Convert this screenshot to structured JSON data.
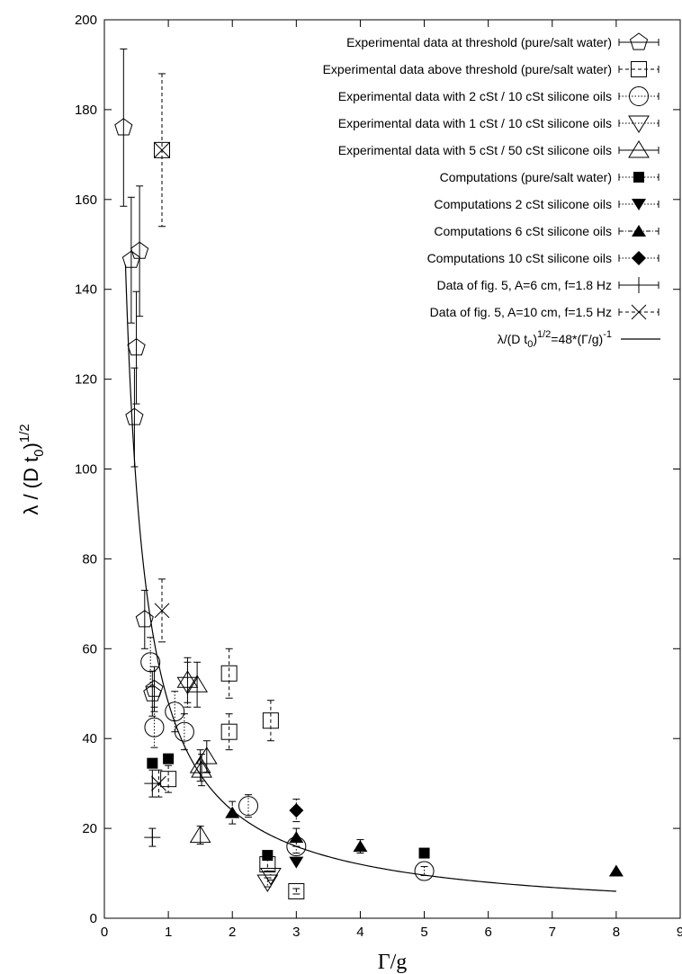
{
  "chart_data": {
    "type": "scatter",
    "xlabel": "Γ/g",
    "ylabel": {
      "main": "λ / (D t",
      "sub": "0",
      "close": ")",
      "sup": "1/2"
    },
    "xlim": [
      0,
      9
    ],
    "ylim": [
      0,
      200
    ],
    "x_ticks": [
      "0",
      "1",
      "2",
      "3",
      "4",
      "5",
      "6",
      "7",
      "8",
      "9"
    ],
    "y_ticks": [
      "0",
      "20",
      "40",
      "60",
      "80",
      "100",
      "120",
      "140",
      "160",
      "180",
      "200"
    ],
    "grid": false,
    "legend_position": "top-right",
    "series": [
      {
        "name": "Experimental data at threshold (pure/salt water)",
        "marker": "pentagon-open",
        "error_style": "solid",
        "points": [
          {
            "x": 0.3,
            "y": 176,
            "err": 17.5
          },
          {
            "x": 0.42,
            "y": 146.5,
            "err": 14
          },
          {
            "x": 0.55,
            "y": 148.5,
            "err": 14.5
          },
          {
            "x": 0.5,
            "y": 127,
            "err": 12.5
          },
          {
            "x": 0.47,
            "y": 111.5,
            "err": 11
          },
          {
            "x": 0.63,
            "y": 66.5,
            "err": 6.5
          },
          {
            "x": 0.78,
            "y": 51,
            "err": 5
          },
          {
            "x": 0.75,
            "y": 50,
            "err": 5
          }
        ]
      },
      {
        "name": "Experimental data above threshold (pure/salt water)",
        "marker": "square-open",
        "error_style": "dashed",
        "points": [
          {
            "x": 0.9,
            "y": 171,
            "err": 17
          },
          {
            "x": 1.0,
            "y": 31,
            "err": 3
          },
          {
            "x": 1.95,
            "y": 54.5,
            "err": 5.5
          },
          {
            "x": 1.95,
            "y": 41.5,
            "err": 4
          },
          {
            "x": 2.6,
            "y": 44,
            "err": 4.5
          },
          {
            "x": 2.55,
            "y": 12,
            "err": 1.5
          },
          {
            "x": 3.0,
            "y": 6,
            "err": 0.6
          }
        ]
      },
      {
        "name": "Experimental data with 2 cSt / 10 cSt silicone oils",
        "marker": "circle-open",
        "error_style": "dotted",
        "points": [
          {
            "x": 0.72,
            "y": 57,
            "err": 5.5
          },
          {
            "x": 0.78,
            "y": 42.5,
            "err": 4.5
          },
          {
            "x": 1.1,
            "y": 46,
            "err": 4.5
          },
          {
            "x": 1.25,
            "y": 41.5,
            "err": 4
          },
          {
            "x": 2.25,
            "y": 25,
            "err": 2.5
          },
          {
            "x": 3.0,
            "y": 16,
            "err": 1.5
          },
          {
            "x": 5.0,
            "y": 10.5,
            "err": 1
          }
        ]
      },
      {
        "name": "Experimental data with 1 cSt / 10 cSt silicone oils",
        "marker": "triangle-down-open",
        "error_style": "dotted",
        "points": [
          {
            "x": 2.55,
            "y": 8,
            "err": 1
          },
          {
            "x": 2.6,
            "y": 9.5,
            "err": 1
          },
          {
            "x": 1.3,
            "y": 52,
            "err": 5
          }
        ]
      },
      {
        "name": "Experimental data with 5 cSt / 50 cSt silicone oils",
        "marker": "triangle-up-open",
        "error_style": "solid",
        "points": [
          {
            "x": 1.3,
            "y": 53,
            "err": 5
          },
          {
            "x": 1.45,
            "y": 52,
            "err": 5
          },
          {
            "x": 1.5,
            "y": 34,
            "err": 3.5
          },
          {
            "x": 1.6,
            "y": 36,
            "err": 3.5
          },
          {
            "x": 1.52,
            "y": 33,
            "err": 3.5
          },
          {
            "x": 1.5,
            "y": 18.5,
            "err": 2
          }
        ]
      },
      {
        "name": "Computations (pure/salt water)",
        "marker": "square-filled",
        "error_style": "dotted",
        "points": [
          {
            "x": 0.75,
            "y": 34.5,
            "err": 0
          },
          {
            "x": 1.0,
            "y": 35.5,
            "err": 0
          },
          {
            "x": 2.55,
            "y": 14,
            "err": 0
          },
          {
            "x": 5.0,
            "y": 14.5,
            "err": 0
          }
        ]
      },
      {
        "name": "Computations 2 cSt silicone oils",
        "marker": "triangle-down-filled",
        "error_style": "dotted",
        "points": [
          {
            "x": 3.0,
            "y": 12.5,
            "err": 0
          }
        ]
      },
      {
        "name": "Computations 6 cSt silicone oils",
        "marker": "triangle-up-filled",
        "error_style": "dashdot",
        "points": [
          {
            "x": 2.0,
            "y": 23.5,
            "err": 2.5
          },
          {
            "x": 3.0,
            "y": 18,
            "err": 2
          },
          {
            "x": 4.0,
            "y": 16,
            "err": 1.5
          },
          {
            "x": 8.0,
            "y": 10.5,
            "err": 0
          }
        ]
      },
      {
        "name": "Computations 10 cSt silicone oils",
        "marker": "diamond-filled",
        "error_style": "dotted",
        "points": [
          {
            "x": 3.0,
            "y": 24,
            "err": 2.5
          }
        ]
      },
      {
        "name": "Data of fig. 5, A=6 cm, f=1.8 Hz",
        "marker": "plus",
        "error_style": "solid",
        "points": [
          {
            "x": 0.75,
            "y": 18,
            "err": 2
          },
          {
            "x": 0.75,
            "y": 30,
            "err": 3
          }
        ]
      },
      {
        "name": "Data of fig. 5, A=10 cm, f=1.5 Hz",
        "marker": "cross",
        "error_style": "dashed",
        "points": [
          {
            "x": 0.9,
            "y": 68.5,
            "err": 7
          },
          {
            "x": 0.85,
            "y": 30,
            "err": 3
          },
          {
            "x": 0.9,
            "y": 171,
            "err": 0
          }
        ]
      }
    ],
    "curve": {
      "name": "λ/(D t₀)^{1/2}=48*(Γ/g)^{-1}",
      "legend": {
        "pre": "λ/(D t",
        "sub": "0",
        "mid": ")",
        "sup1": "1/2",
        "post": "=48*(Γ/g)",
        "sup2": "-1"
      },
      "coefficient": 48,
      "exponent": -1,
      "x_range": [
        0.33,
        8.0
      ]
    }
  }
}
